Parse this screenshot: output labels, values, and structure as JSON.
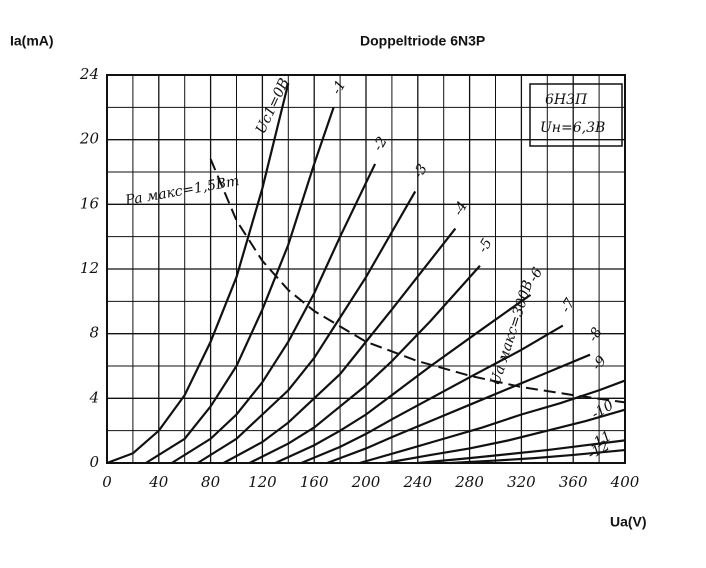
{
  "chart_data": {
    "type": "line",
    "title": "Doppeltriode 6N3P",
    "y_label": "Ia(mA)",
    "x_label": "Ua(V)",
    "annotations": [
      "6Н3П",
      "Uн=6,3В",
      "Ua макс=300В"
    ],
    "xlim": [
      0,
      400
    ],
    "ylim": [
      0,
      24
    ],
    "xticks": [
      0,
      40,
      80,
      120,
      160,
      200,
      240,
      280,
      320,
      360,
      400
    ],
    "yticks": [
      0,
      4,
      8,
      12,
      16,
      20,
      24
    ],
    "xgrid": [
      20,
      60,
      100,
      140,
      180,
      220,
      260,
      300,
      340,
      380
    ],
    "ygrid": [
      2,
      6,
      10,
      14,
      18,
      22
    ],
    "grid": true,
    "color": "#111111",
    "series": [
      {
        "name": "Uc1=0В",
        "x": [
          0,
          20,
          40,
          60,
          80,
          100,
          120,
          140
        ],
        "values": [
          0,
          0.6,
          2,
          4.2,
          7.5,
          11.5,
          17,
          23.5
        ]
      },
      {
        "name": "-1",
        "x": [
          30,
          60,
          80,
          100,
          120,
          140,
          160,
          175
        ],
        "values": [
          0,
          1.5,
          3.5,
          6,
          9.5,
          13.5,
          18.5,
          22
        ]
      },
      {
        "name": "-2",
        "x": [
          50,
          80,
          100,
          120,
          140,
          160,
          180,
          207
        ],
        "values": [
          0,
          1.5,
          3,
          5,
          7.5,
          10.5,
          14,
          18.5
        ]
      },
      {
        "name": "-3",
        "x": [
          70,
          100,
          120,
          140,
          160,
          180,
          200,
          238
        ],
        "values": [
          0,
          1.5,
          3,
          4.5,
          6.5,
          9,
          11.5,
          16.8
        ]
      },
      {
        "name": "-4",
        "x": [
          90,
          120,
          140,
          160,
          180,
          200,
          220,
          269
        ],
        "values": [
          0,
          1.3,
          2.5,
          4,
          5.5,
          7.5,
          9.5,
          14.5
        ]
      },
      {
        "name": "-5",
        "x": [
          110,
          140,
          160,
          180,
          200,
          220,
          250,
          288
        ],
        "values": [
          0,
          1.2,
          2.2,
          3.5,
          4.8,
          6.3,
          8.8,
          12.2
        ]
      },
      {
        "name": "-6",
        "x": [
          130,
          160,
          180,
          200,
          220,
          250,
          290,
          327
        ],
        "values": [
          0,
          1.1,
          2,
          3,
          4.2,
          6,
          8.3,
          10.4
        ]
      },
      {
        "name": "-7",
        "x": [
          150,
          180,
          200,
          220,
          250,
          280,
          320,
          352
        ],
        "values": [
          0,
          1,
          1.8,
          2.7,
          4,
          5.3,
          7,
          8.5
        ]
      },
      {
        "name": "-8",
        "x": [
          170,
          200,
          220,
          250,
          280,
          310,
          340,
          373
        ],
        "values": [
          0,
          0.9,
          1.6,
          2.6,
          3.6,
          4.6,
          5.6,
          6.7
        ]
      },
      {
        "name": "-9",
        "x": [
          195,
          230,
          260,
          290,
          320,
          350,
          380,
          400
        ],
        "values": [
          0,
          0.8,
          1.5,
          2.2,
          3,
          3.7,
          4.5,
          5.1
        ]
      },
      {
        "name": "-10",
        "x": [
          215,
          250,
          280,
          310,
          340,
          370,
          400
        ],
        "values": [
          0,
          0.5,
          0.9,
          1.4,
          2,
          2.6,
          3.3
        ]
      },
      {
        "name": "-11",
        "x": [
          240,
          280,
          310,
          340,
          370,
          400
        ],
        "values": [
          0,
          0.3,
          0.55,
          0.8,
          1.1,
          1.4
        ]
      },
      {
        "name": "-12",
        "x": [
          265,
          300,
          330,
          360,
          400
        ],
        "values": [
          0,
          0.15,
          0.3,
          0.5,
          0.8
        ]
      },
      {
        "name": "Pa макс=1,5Вт",
        "dashed": true,
        "x": [
          80,
          100,
          120,
          140,
          160,
          200,
          240,
          280,
          320,
          360,
          400
        ],
        "values": [
          18.8,
          15,
          12.5,
          10.7,
          9.4,
          7.5,
          6.3,
          5.4,
          4.7,
          4.2,
          3.75
        ]
      }
    ]
  }
}
